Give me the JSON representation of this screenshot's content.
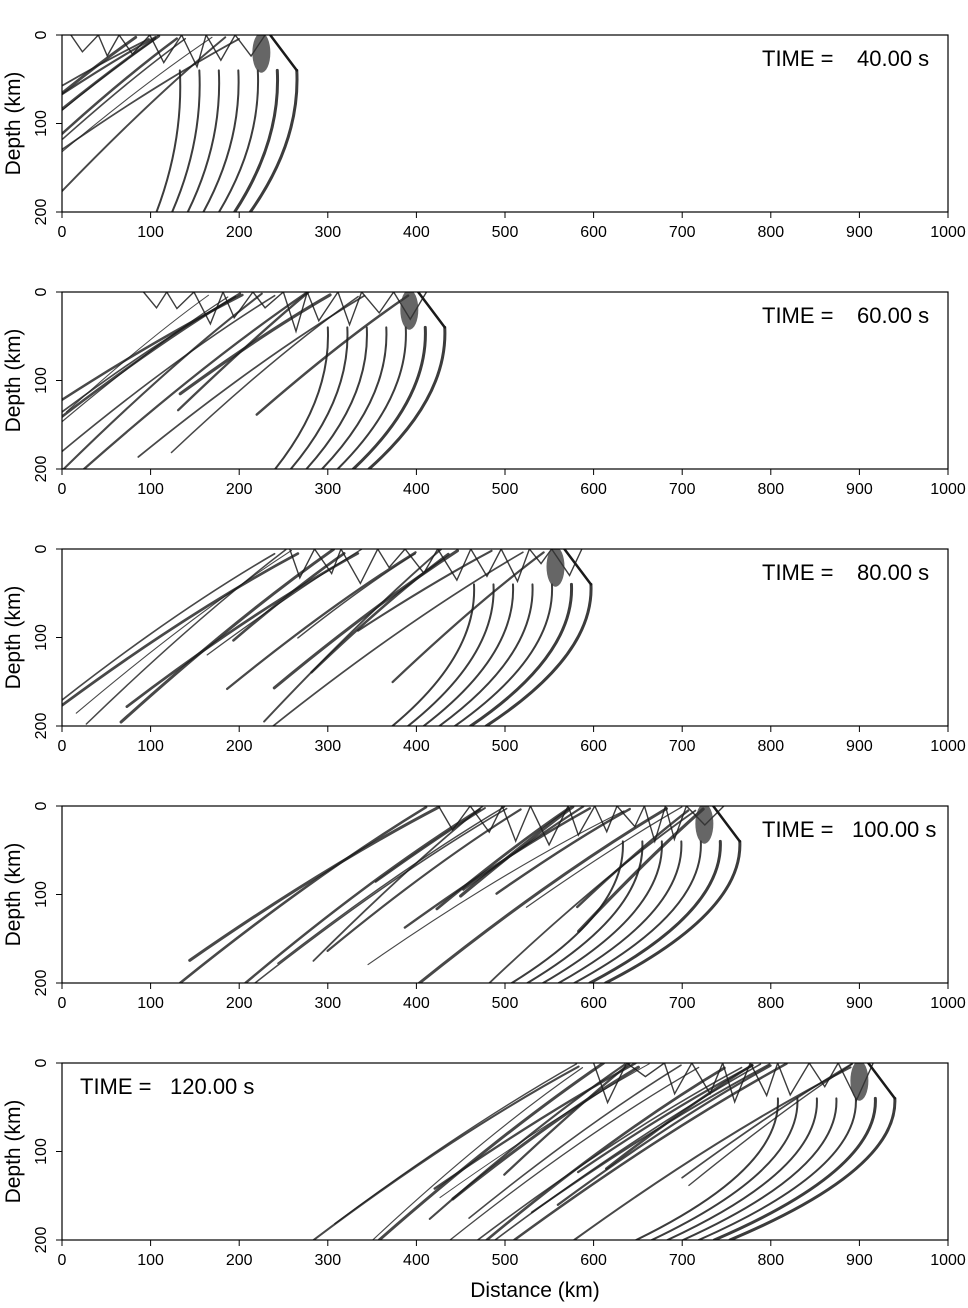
{
  "chart_data": [
    {
      "type": "scatter",
      "time_label": "TIME =",
      "time_value": "40.00 s",
      "time_label_position": "top-right",
      "ylabel": "Depth (km)",
      "xlabel": "",
      "xlim": [
        0,
        1000
      ],
      "ylim": [
        0,
        200
      ],
      "y_inverted": true,
      "xticks": [
        "0",
        "100",
        "200",
        "300",
        "400",
        "500",
        "600",
        "700",
        "800",
        "900",
        "1000"
      ],
      "yticks": [
        "0",
        "100",
        "200"
      ],
      "wavefront_max_distance_km": 265
    },
    {
      "type": "scatter",
      "time_label": "TIME =",
      "time_value": "60.00 s",
      "time_label_position": "top-right",
      "ylabel": "Depth (km)",
      "xlabel": "",
      "xlim": [
        0,
        1000
      ],
      "ylim": [
        0,
        200
      ],
      "y_inverted": true,
      "xticks": [
        "0",
        "100",
        "200",
        "300",
        "400",
        "500",
        "600",
        "700",
        "800",
        "900",
        "1000"
      ],
      "yticks": [
        "0",
        "100",
        "200"
      ],
      "wavefront_max_distance_km": 432
    },
    {
      "type": "scatter",
      "time_label": "TIME =",
      "time_value": "80.00 s",
      "time_label_position": "top-right",
      "ylabel": "Depth (km)",
      "xlabel": "",
      "xlim": [
        0,
        1000
      ],
      "ylim": [
        0,
        200
      ],
      "y_inverted": true,
      "xticks": [
        "0",
        "100",
        "200",
        "300",
        "400",
        "500",
        "600",
        "700",
        "800",
        "900",
        "1000"
      ],
      "yticks": [
        "0",
        "100",
        "200"
      ],
      "wavefront_max_distance_km": 597
    },
    {
      "type": "scatter",
      "time_label": "TIME =",
      "time_value": "100.00 s",
      "time_label_position": "top-right",
      "ylabel": "Depth (km)",
      "xlabel": "",
      "xlim": [
        0,
        1000
      ],
      "ylim": [
        0,
        200
      ],
      "y_inverted": true,
      "xticks": [
        "0",
        "100",
        "200",
        "300",
        "400",
        "500",
        "600",
        "700",
        "800",
        "900",
        "1000"
      ],
      "yticks": [
        "0",
        "100",
        "200"
      ],
      "wavefront_max_distance_km": 765
    },
    {
      "type": "scatter",
      "time_label": "TIME =",
      "time_value": "120.00 s",
      "time_label_position": "top-left",
      "ylabel": "Depth (km)",
      "xlabel": "Distance (km)",
      "xlim": [
        0,
        1000
      ],
      "ylim": [
        0,
        200
      ],
      "y_inverted": true,
      "xticks": [
        "0",
        "100",
        "200",
        "300",
        "400",
        "500",
        "600",
        "700",
        "800",
        "900",
        "1000"
      ],
      "yticks": [
        "0",
        "100",
        "200"
      ],
      "wavefront_max_distance_km": 940
    }
  ]
}
